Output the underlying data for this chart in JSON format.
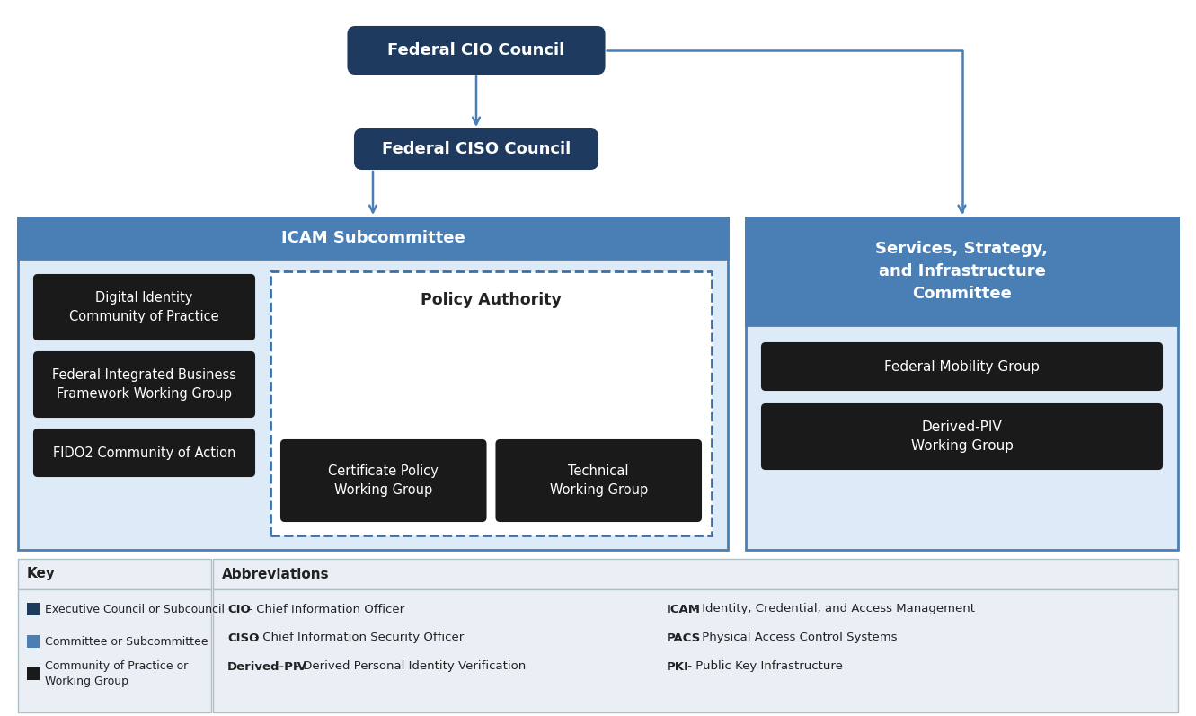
{
  "bg_color": "#ffffff",
  "dark_navy": "#1e3a5f",
  "medium_blue": "#4a7fb5",
  "light_blue_bg": "#4a7fb5",
  "icam_body_bg": "#ddeaf7",
  "ssi_body_bg": "#ddeaf7",
  "black_box": "#1a1a1a",
  "footer_bg": "#eaeff5",
  "arrow_color": "#4a7fb5",
  "dashed_border": "#3d6fa5",
  "white_text": "#ffffff",
  "black_text": "#222222",
  "title": "Federal CIO Council",
  "ciso": "Federal CISO Council",
  "icam_sub": "ICAM Subcommittee",
  "ssi_committee": "Services, Strategy,\nand Infrastructure\nCommittee",
  "policy_authority": "Policy Authority",
  "boxes_left": [
    "Digital Identity\nCommunity of Practice",
    "Federal Integrated Business\nFramework Working Group",
    "FIDO2 Community of Action"
  ],
  "boxes_policy": [
    "Certificate Policy\nWorking Group",
    "Technical\nWorking Group"
  ],
  "boxes_right": [
    "Federal Mobility Group",
    "Derived-PIV\nWorking Group"
  ],
  "key_title": "Key",
  "abbrev_title": "Abbreviations",
  "key_items": [
    [
      "#1e3a5f",
      "Executive Council or Subcouncil"
    ],
    [
      "#4a7fb5",
      "Committee or Subcommittee"
    ],
    [
      "#1a1a1a",
      "Community of Practice or\nWorking Group"
    ]
  ],
  "abbrev_col1": [
    [
      "CIO",
      " - Chief Information Officer"
    ],
    [
      "CISO",
      " - Chief Information Security Officer"
    ],
    [
      "Derived-PIV",
      " - Derived Personal Identity Verification"
    ]
  ],
  "abbrev_col2": [
    [
      "ICAM",
      " - Identity, Credential, and Access Management"
    ],
    [
      "PACS",
      " - Physical Access Control Systems"
    ],
    [
      "PKI",
      " - Public Key Infrastructure"
    ]
  ]
}
